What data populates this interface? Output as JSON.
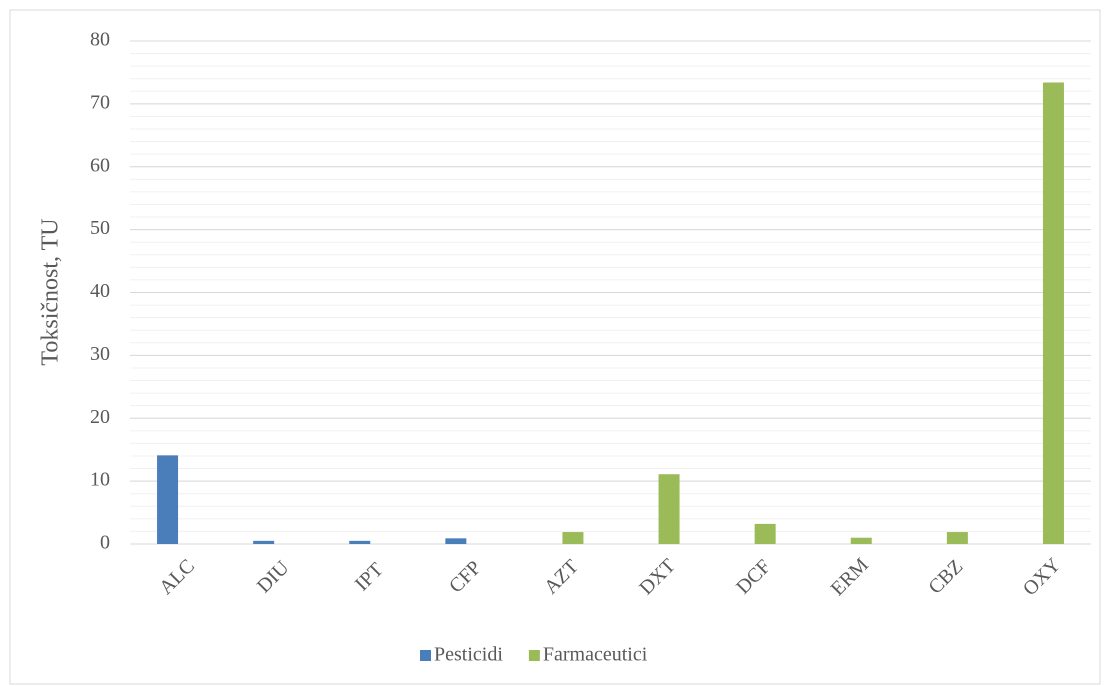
{
  "chart_data": {
    "type": "bar",
    "y_label": "Toksičnost, TU",
    "categories": [
      "ALC",
      "DIU",
      "IPT",
      "CFP",
      "AZT",
      "DXT",
      "DCF",
      "ERM",
      "CBZ",
      "OXY"
    ],
    "series": [
      {
        "name": "Pesticidi",
        "color": "#4a7ebb",
        "values": [
          14.1,
          0.5,
          0.5,
          0.9,
          null,
          null,
          null,
          null,
          null,
          null
        ]
      },
      {
        "name": "Farmaceutici",
        "color": "#9bbb59",
        "values": [
          null,
          null,
          null,
          null,
          1.9,
          11.1,
          3.2,
          1.0,
          1.9,
          73.4
        ]
      }
    ],
    "ylim": [
      0,
      80
    ],
    "yticks": [
      0,
      10,
      20,
      30,
      40,
      50,
      60,
      70,
      80
    ],
    "grid": true,
    "minor_ytick_step": 2,
    "legend": "bottom"
  }
}
